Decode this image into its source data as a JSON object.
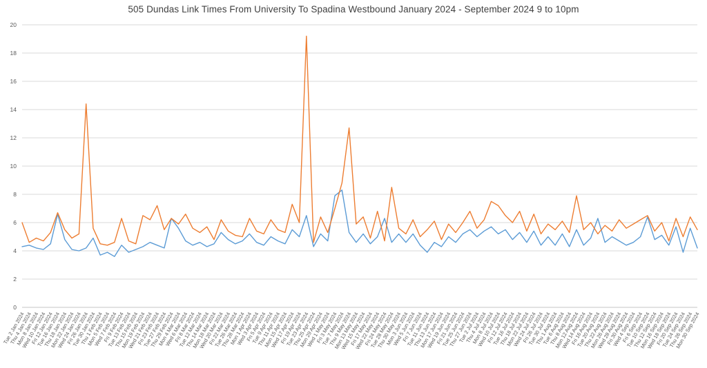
{
  "chart_data": {
    "type": "line",
    "title": "505 Dundas Link Times From University To Spadina Westbound January 2024 - September 2024 9 to 10pm",
    "xlabel": "",
    "ylabel": "",
    "ylim": [
      0,
      20
    ],
    "ytick_step": 2,
    "grid": "horizontal",
    "legend_position": "none",
    "grid_color": "#d9d9d9",
    "axis_label_color": "#595959",
    "x": [
      "Tue 2 Jan 2024",
      "Thu 4 Jan 2024",
      "Mon 8 Jan 2024",
      "Wed 10 Jan 2024",
      "Fri 12 Jan 2024",
      "Tue 16 Jan 2024",
      "Thu 18 Jan 2024",
      "Mon 22 Jan 2024",
      "Wed 24 Jan 2024",
      "Fri 26 Jan 2024",
      "Tue 30 Jan 2024",
      "Thu 1 Feb 2024",
      "Mon 5 Feb 2024",
      "Wed 7 Feb 2024",
      "Fri 9 Feb 2024",
      "Tue 13 Feb 2024",
      "Thu 15 Feb 2024",
      "Mon 19 Feb 2024",
      "Wed 21 Feb 2024",
      "Fri 23 Feb 2024",
      "Tue 27 Feb 2024",
      "Thu 29 Feb 2024",
      "Mon 4 Mar 2024",
      "Wed 6 Mar 2024",
      "Fri 8 Mar 2024",
      "Tue 12 Mar 2024",
      "Thu 14 Mar 2024",
      "Mon 18 Mar 2024",
      "Wed 20 Mar 2024",
      "Fri 22 Mar 2024",
      "Tue 26 Mar 2024",
      "Thu 28 Mar 2024",
      "Mon 1 Apr 2024",
      "Wed 3 Apr 2024",
      "Fri 5 Apr 2024",
      "Tue 9 Apr 2024",
      "Thu 11 Apr 2024",
      "Mon 15 Apr 2024",
      "Wed 17 Apr 2024",
      "Fri 19 Apr 2024",
      "Tue 23 Apr 2024",
      "Thu 25 Apr 2024",
      "Mon 29 Apr 2024",
      "Wed 1 May 2024",
      "Fri 3 May 2024",
      "Tue 7 May 2024",
      "Thu 9 May 2024",
      "Mon 13 May 2024",
      "Wed 15 May 2024",
      "Fri 17 May 2024",
      "Wed 22 May 2024",
      "Fri 24 May 2024",
      "Tue 28 May 2024",
      "Thu 30 May 2024",
      "Mon 3 Jun 2024",
      "Wed 5 Jun 2024",
      "Fri 7 Jun 2024",
      "Tue 11 Jun 2024",
      "Thu 13 Jun 2024",
      "Mon 17 Jun 2024",
      "Wed 19 Jun 2024",
      "Fri 21 Jun 2024",
      "Tue 25 Jun 2024",
      "Thu 27 Jun 2024",
      "Tue 2 Jul 2024",
      "Thu 4 Jul 2024",
      "Mon 8 Jul 2024",
      "Wed 10 Jul 2024",
      "Fri 12 Jul 2024",
      "Tue 16 Jul 2024",
      "Thu 18 Jul 2024",
      "Mon 22 Jul 2024",
      "Wed 24 Jul 2024",
      "Fri 26 Jul 2024",
      "Tue 30 Jul 2024",
      "Thu 1 Aug 2024",
      "Tue 6 Aug 2024",
      "Thu 8 Aug 2024",
      "Mon 12 Aug 2024",
      "Wed 14 Aug 2024",
      "Fri 16 Aug 2024",
      "Tue 20 Aug 2024",
      "Thu 22 Aug 2024",
      "Mon 26 Aug 2024",
      "Wed 28 Aug 2024",
      "Fri 30 Aug 2024",
      "Wed 4 Sep 2024",
      "Fri 6 Sep 2024",
      "Tue 10 Sep 2024",
      "Thu 12 Sep 2024",
      "Mon 16 Sep 2024",
      "Wed 18 Sep 2024",
      "Fri 20 Sep 2024",
      "Tue 24 Sep 2024",
      "Thu 26 Sep 2024",
      "Mon 30 Sep 2024"
    ],
    "series": [
      {
        "color": "#5B9BD5",
        "values": [
          4.3,
          4.4,
          4.2,
          4.1,
          4.5,
          6.6,
          4.8,
          4.1,
          4.0,
          4.2,
          4.9,
          3.7,
          3.9,
          3.6,
          4.4,
          3.9,
          4.1,
          4.3,
          4.6,
          4.4,
          4.2,
          6.3,
          5.6,
          4.7,
          4.4,
          4.6,
          4.3,
          4.5,
          5.3,
          4.8,
          4.5,
          4.7,
          5.2,
          4.6,
          4.4,
          5.0,
          4.7,
          4.5,
          5.5,
          5.0,
          6.5,
          4.3,
          5.2,
          4.7,
          7.9,
          8.3,
          5.3,
          4.6,
          5.2,
          4.5,
          5.0,
          6.3,
          4.6,
          5.2,
          4.6,
          5.2,
          4.4,
          3.9,
          4.6,
          4.3,
          5.0,
          4.6,
          5.2,
          5.5,
          5.0,
          5.4,
          5.7,
          5.2,
          5.5,
          4.8,
          5.3,
          4.6,
          5.4,
          4.4,
          5.0,
          4.4,
          5.2,
          4.3,
          5.5,
          4.4,
          4.9,
          6.3,
          4.6,
          5.0,
          4.7,
          4.4,
          4.6,
          5.0,
          6.4,
          4.8,
          5.1,
          4.4,
          5.7,
          3.9,
          5.6,
          4.2
        ]
      },
      {
        "color": "#ED7D31",
        "values": [
          6.0,
          4.6,
          4.9,
          4.7,
          5.3,
          6.7,
          5.5,
          4.9,
          5.2,
          14.4,
          5.6,
          4.5,
          4.4,
          4.6,
          6.3,
          4.7,
          4.5,
          6.5,
          6.2,
          7.2,
          5.5,
          6.3,
          5.9,
          6.6,
          5.6,
          5.3,
          5.7,
          4.8,
          6.2,
          5.4,
          5.1,
          5.0,
          6.3,
          5.4,
          5.2,
          6.2,
          5.5,
          5.3,
          7.3,
          6.0,
          19.2,
          4.6,
          6.4,
          5.3,
          7.0,
          8.8,
          12.7,
          5.9,
          6.4,
          4.9,
          6.8,
          4.7,
          8.5,
          5.6,
          5.2,
          6.2,
          5.0,
          5.5,
          6.1,
          4.8,
          5.9,
          5.3,
          6.0,
          6.8,
          5.6,
          6.2,
          7.5,
          7.2,
          6.5,
          6.0,
          6.8,
          5.4,
          6.6,
          5.2,
          5.9,
          5.5,
          6.1,
          5.3,
          7.9,
          5.5,
          6.0,
          5.2,
          5.8,
          5.4,
          6.2,
          5.6,
          5.9,
          6.2,
          6.5,
          5.4,
          6.0,
          4.7,
          6.3,
          5.0,
          6.4,
          5.5
        ]
      }
    ]
  }
}
